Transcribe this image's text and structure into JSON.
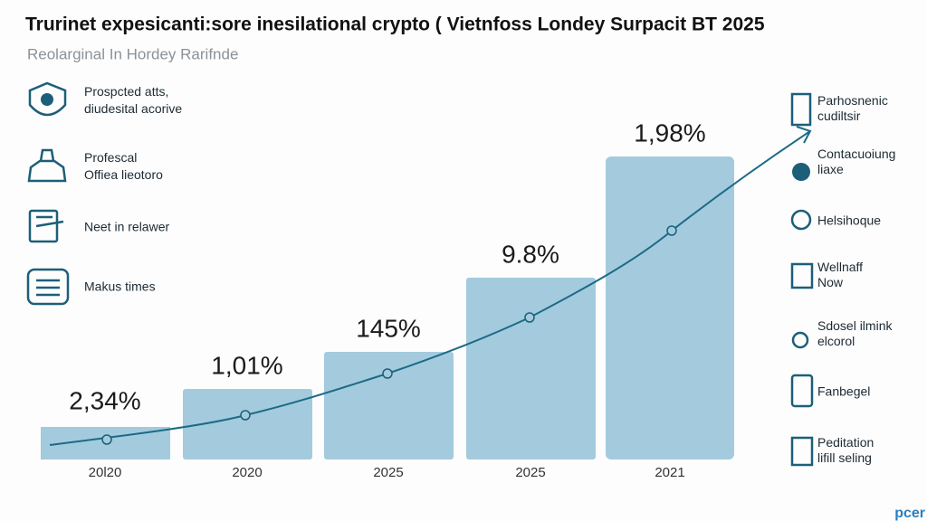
{
  "header": {
    "title": "Trurinet expesicanti:sore inesilational crypto ( Vietnfoss Londey Surpacit BT 2025",
    "subtitle": "Reolarginal In Hordey Rarifnde"
  },
  "left_items": [
    {
      "lines": [
        "Prospcted atts,",
        "diudesital acorive"
      ]
    },
    {
      "lines": [
        "Profescal",
        "Offiea lieotoro"
      ]
    },
    {
      "lines": [
        "Neet in relawer"
      ]
    },
    {
      "lines": [
        "Makus times"
      ]
    }
  ],
  "bars": [
    {
      "label": "2,34%",
      "year": "20l20"
    },
    {
      "label": "1,01%",
      "year": "2020"
    },
    {
      "label": "145%",
      "year": "2025"
    },
    {
      "label": "9.8%",
      "year": "2025"
    },
    {
      "label": "1,98%",
      "year": "2021"
    }
  ],
  "right_items": [
    {
      "lines": [
        "Parhosnenic",
        "cudiltsir"
      ]
    },
    {
      "lines": [
        "Contacuoiung",
        "liaxe"
      ]
    },
    {
      "lines": [
        "Helsihoque"
      ]
    },
    {
      "lines": [
        "Wellnaff",
        "Now"
      ]
    },
    {
      "lines": [
        "Sdosel ilmink",
        "elcorol"
      ]
    },
    {
      "lines": [
        "Fanbegel"
      ]
    },
    {
      "lines": [
        "Peditation",
        "lifill seling"
      ]
    }
  ],
  "footer": {
    "brand": "pcer"
  }
}
